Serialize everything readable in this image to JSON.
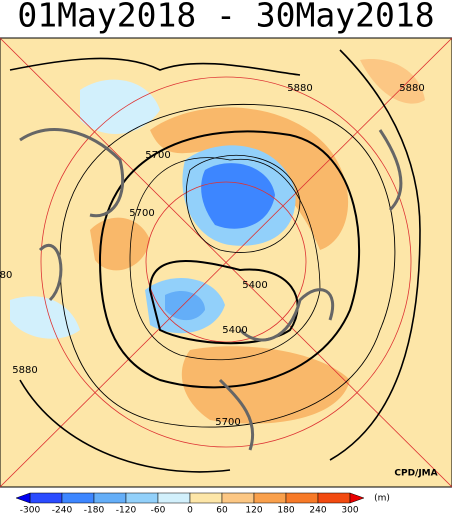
{
  "header": {
    "title": "01May2018 - 30May2018"
  },
  "contour_labels": [
    "5880",
    "5880",
    "5700",
    "5700",
    "5400",
    "5400",
    "5700",
    "5880",
    "80"
  ],
  "credit": "CPD/JMA",
  "colorbar": {
    "ticks": [
      -300,
      -240,
      -180,
      -120,
      -60,
      0,
      60,
      120,
      180,
      240,
      300
    ],
    "colors": [
      "#2a4bff",
      "#3d86ff",
      "#64aef8",
      "#92d0fa",
      "#d2f0fc",
      "#fde6a8",
      "#fcc784",
      "#f9a04c",
      "#f77a28",
      "#f24a10"
    ],
    "unit": "(m)"
  }
}
